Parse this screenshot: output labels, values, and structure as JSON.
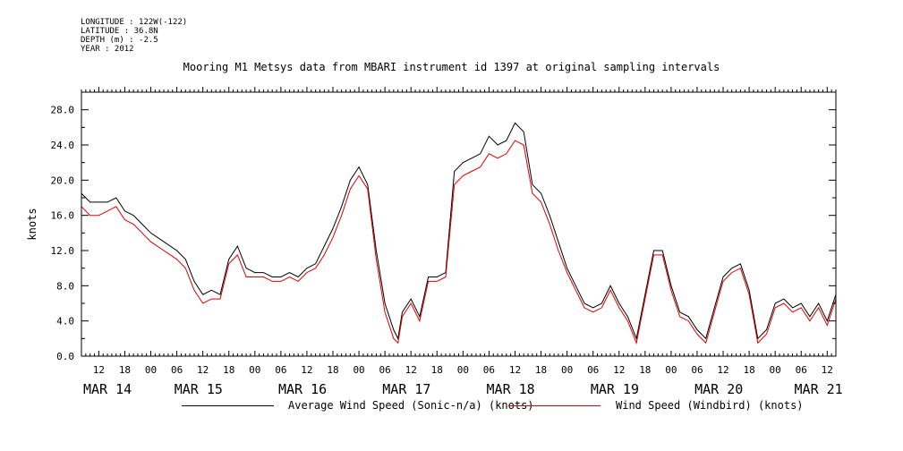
{
  "meta": {
    "lines": [
      "LONGITUDE : 122W(-122)",
      "LATITUDE : 36.8N",
      "DEPTH (m) : -2.5",
      "YEAR : 2012"
    ]
  },
  "colors": {
    "series1": "#000000",
    "series2": "#e00000"
  },
  "chart_data": {
    "type": "line",
    "title": "Mooring M1 Metsys data from MBARI instrument id 1397 at original sampling intervals",
    "xlabel": "",
    "ylabel": "knots",
    "ylim": [
      0,
      30
    ],
    "yticks": [
      0,
      4,
      8,
      12,
      16,
      20,
      24,
      28
    ],
    "ytick_labels": [
      "0.0",
      "4.0",
      "8.0",
      "12.0",
      "16.0",
      "20.0",
      "24.0",
      "28.0"
    ],
    "xlim_hours": [
      8,
      182
    ],
    "hour_ticks": [
      {
        "h": 12,
        "label": "12"
      },
      {
        "h": 18,
        "label": "18"
      },
      {
        "h": 24,
        "label": "00"
      },
      {
        "h": 30,
        "label": "06"
      },
      {
        "h": 36,
        "label": "12"
      },
      {
        "h": 42,
        "label": "18"
      },
      {
        "h": 48,
        "label": "00"
      },
      {
        "h": 54,
        "label": "06"
      },
      {
        "h": 60,
        "label": "12"
      },
      {
        "h": 66,
        "label": "18"
      },
      {
        "h": 72,
        "label": "00"
      },
      {
        "h": 78,
        "label": "06"
      },
      {
        "h": 84,
        "label": "12"
      },
      {
        "h": 90,
        "label": "18"
      },
      {
        "h": 96,
        "label": "00"
      },
      {
        "h": 102,
        "label": "06"
      },
      {
        "h": 108,
        "label": "12"
      },
      {
        "h": 114,
        "label": "18"
      },
      {
        "h": 120,
        "label": "00"
      },
      {
        "h": 126,
        "label": "06"
      },
      {
        "h": 132,
        "label": "12"
      },
      {
        "h": 138,
        "label": "18"
      },
      {
        "h": 144,
        "label": "00"
      },
      {
        "h": 150,
        "label": "06"
      },
      {
        "h": 156,
        "label": "12"
      },
      {
        "h": 162,
        "label": "18"
      },
      {
        "h": 168,
        "label": "00"
      },
      {
        "h": 174,
        "label": "06"
      },
      {
        "h": 180,
        "label": "12"
      }
    ],
    "day_labels": [
      {
        "h": 14,
        "label": "MAR 14"
      },
      {
        "h": 35,
        "label": "MAR 15"
      },
      {
        "h": 59,
        "label": "MAR 16"
      },
      {
        "h": 83,
        "label": "MAR 17"
      },
      {
        "h": 107,
        "label": "MAR 18"
      },
      {
        "h": 131,
        "label": "MAR 19"
      },
      {
        "h": 155,
        "label": "MAR 20"
      },
      {
        "h": 178,
        "label": "MAR 21"
      }
    ],
    "series": [
      {
        "name": "Average Wind Speed (Sonic-n/a) (knots)",
        "x": [
          8,
          10,
          12,
          14,
          16,
          18,
          20,
          22,
          24,
          27,
          30,
          32,
          34,
          36,
          38,
          40,
          42,
          44,
          46,
          48,
          50,
          52,
          54,
          56,
          58,
          60,
          62,
          64,
          66,
          68,
          70,
          72,
          74,
          76,
          78,
          80,
          81,
          82,
          84,
          86,
          88,
          90,
          92,
          94,
          96,
          98,
          100,
          102,
          104,
          106,
          108,
          110,
          112,
          114,
          116,
          118,
          120,
          122,
          124,
          126,
          128,
          130,
          132,
          134,
          136,
          138,
          140,
          142,
          144,
          146,
          148,
          150,
          152,
          154,
          156,
          158,
          160,
          162,
          164,
          166,
          168,
          170,
          172,
          174,
          176,
          178,
          180,
          182
        ],
        "y": [
          18.5,
          17.5,
          17.5,
          17.5,
          18.0,
          16.5,
          16.0,
          15.0,
          14.0,
          13.0,
          12.0,
          11.0,
          8.5,
          7.0,
          7.5,
          7.0,
          11.0,
          12.5,
          10.0,
          9.5,
          9.5,
          9.0,
          9.0,
          9.5,
          9.0,
          10.0,
          10.5,
          12.5,
          14.5,
          17.0,
          20.0,
          21.5,
          19.5,
          12.0,
          6.0,
          3.0,
          2.0,
          5.0,
          6.5,
          4.5,
          9.0,
          9.0,
          9.5,
          21.0,
          22.0,
          22.5,
          23.0,
          25.0,
          24.0,
          24.5,
          26.5,
          25.5,
          19.5,
          18.5,
          16.0,
          13.0,
          10.0,
          8.0,
          6.0,
          5.5,
          6.0,
          8.0,
          6.0,
          4.5,
          2.0,
          7.0,
          12.0,
          12.0,
          8.0,
          5.0,
          4.5,
          3.0,
          2.0,
          5.5,
          9.0,
          10.0,
          10.5,
          7.5,
          2.0,
          3.0,
          6.0,
          6.5,
          5.5,
          6.0,
          4.5,
          6.0,
          4.0,
          7.0
        ]
      },
      {
        "name": "Wind Speed (Windbird) (knots)",
        "x": [
          8,
          10,
          12,
          14,
          16,
          18,
          20,
          22,
          24,
          27,
          30,
          32,
          34,
          36,
          38,
          40,
          42,
          44,
          46,
          48,
          50,
          52,
          54,
          56,
          58,
          60,
          62,
          64,
          66,
          68,
          70,
          72,
          74,
          76,
          78,
          80,
          81,
          82,
          84,
          86,
          88,
          90,
          92,
          94,
          96,
          98,
          100,
          102,
          104,
          106,
          108,
          110,
          112,
          114,
          116,
          118,
          120,
          122,
          124,
          126,
          128,
          130,
          132,
          134,
          136,
          138,
          140,
          142,
          144,
          146,
          148,
          150,
          152,
          154,
          156,
          158,
          160,
          162,
          164,
          166,
          168,
          170,
          172,
          174,
          176,
          178,
          180,
          182
        ],
        "y": [
          17.0,
          16.0,
          16.0,
          16.5,
          17.0,
          15.5,
          15.0,
          14.0,
          13.0,
          12.0,
          11.0,
          10.0,
          7.5,
          6.0,
          6.5,
          6.5,
          10.5,
          11.5,
          9.0,
          9.0,
          9.0,
          8.5,
          8.5,
          9.0,
          8.5,
          9.5,
          10.0,
          11.5,
          13.5,
          16.0,
          19.0,
          20.5,
          19.0,
          11.0,
          5.0,
          2.0,
          1.5,
          4.5,
          6.0,
          4.0,
          8.5,
          8.5,
          9.0,
          19.5,
          20.5,
          21.0,
          21.5,
          23.0,
          22.5,
          23.0,
          24.5,
          24.0,
          18.5,
          17.5,
          15.0,
          12.0,
          9.5,
          7.5,
          5.5,
          5.0,
          5.5,
          7.5,
          5.5,
          4.0,
          1.5,
          6.5,
          11.5,
          11.5,
          7.5,
          4.5,
          4.0,
          2.5,
          1.5,
          5.0,
          8.5,
          9.5,
          10.0,
          7.0,
          1.5,
          2.5,
          5.5,
          6.0,
          5.0,
          5.5,
          4.0,
          5.5,
          3.5,
          6.5
        ]
      }
    ],
    "legend": "bottom"
  }
}
